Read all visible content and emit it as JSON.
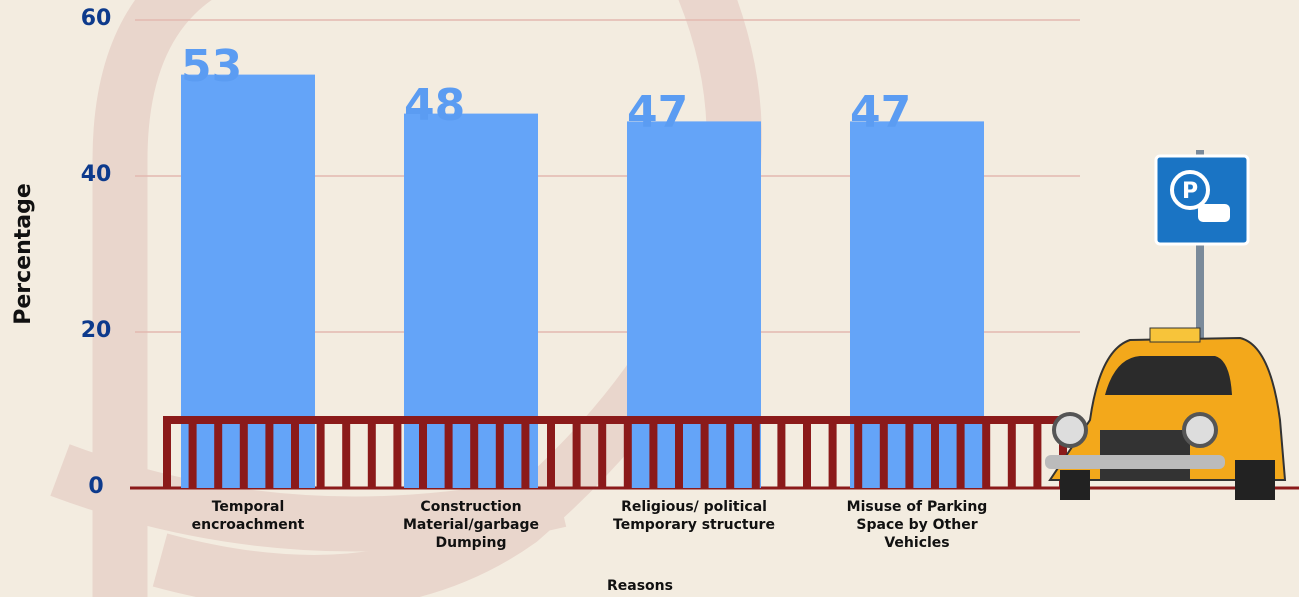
{
  "chart_data": {
    "type": "bar",
    "y_label": "Percentage",
    "x_label": "Reasons",
    "categories": [
      "Temporal encroachment",
      "Construction Material/garbage Dumping",
      "Religious/ political Temporary structure",
      "Misuse of Parking Space by Other Vehicles"
    ],
    "values": [
      53,
      48,
      47,
      47
    ],
    "color": "#64a4f8",
    "ylim": [
      0,
      60
    ],
    "yticks": [
      0,
      20,
      40,
      60
    ],
    "grid": true
  }
}
